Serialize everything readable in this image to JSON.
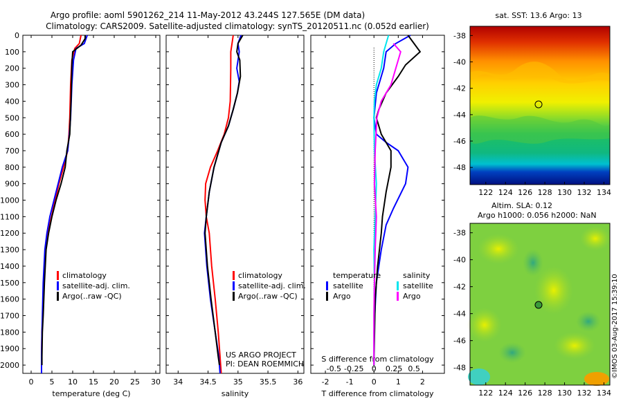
{
  "title": {
    "line1": "Argo profile: aoml 5901262_214 11-May-2012 43.244S 127.565E (DM data)",
    "line2": "Climatology: CARS2009. Satellite-adjusted climatology: synTS_20120511.nc (0.052d earlier)"
  },
  "colors": {
    "climatology": "#ff0000",
    "satellite": "#0000ff",
    "argo": "#000000",
    "sat_salinity": "#00e5ee",
    "argo_salinity": "#ff00ff"
  },
  "depth_ticks": [
    "0",
    "100",
    "200",
    "300",
    "400",
    "500",
    "600",
    "700",
    "800",
    "900",
    "1000",
    "1100",
    "1200",
    "1300",
    "1400",
    "1500",
    "1600",
    "1700",
    "1800",
    "1900",
    "2000"
  ],
  "legend": {
    "climatology": "climatology",
    "satellite": "satellite-adj. clim.",
    "argo": "Argo(..raw -QC)"
  },
  "diff_legend": {
    "temperature": "temperature",
    "salinity": "salinity",
    "satellite": "satellite",
    "argo": "Argo"
  },
  "project": {
    "line1": "US ARGO PROJECT",
    "line2": "PI: DEAN ROEMMICH"
  },
  "sst_map": {
    "title": "sat. SST: 13.6 Argo: 13",
    "xticks": [
      "122",
      "124",
      "126",
      "128",
      "130",
      "132",
      "134"
    ],
    "yticks": [
      "-38",
      "-40",
      "-42",
      "-44",
      "-46",
      "-48"
    ],
    "marker": {
      "lon": 127.565,
      "lat": -43.244
    }
  },
  "sla_map": {
    "title1": "Altim. SLA: 0.12",
    "title2": "Argo h1000: 0.056 h2000: NaN",
    "xticks": [
      "122",
      "124",
      "126",
      "128",
      "130",
      "132",
      "134"
    ],
    "yticks": [
      "-38",
      "-40",
      "-42",
      "-44",
      "-46",
      "-48"
    ],
    "marker": {
      "lon": 127.565,
      "lat": -43.244
    }
  },
  "credit": "©IMOS 03-Aug-2017 15:39:10",
  "chart_data": [
    {
      "type": "line",
      "xlabel": "temperature (deg C)",
      "xticks": [
        "0",
        "5",
        "10",
        "15",
        "20",
        "25",
        "30"
      ],
      "xlim": [
        -2,
        31
      ],
      "ylim": [
        2050,
        0
      ],
      "series": [
        {
          "name": "climatology",
          "color": "#ff0000",
          "x": [
            12,
            11.6,
            10.5,
            9.8,
            9.5,
            9.3,
            9.1,
            8.8,
            7.8,
            6.7,
            5.8,
            4.9,
            4.0,
            3.5,
            3.0,
            2.8,
            2.6,
            2.5,
            2.5
          ],
          "y": [
            0,
            50,
            80,
            150,
            300,
            500,
            600,
            700,
            800,
            900,
            1000,
            1100,
            1200,
            1300,
            1500,
            1700,
            1800,
            1950,
            2050
          ]
        },
        {
          "name": "satellite-adj. clim.",
          "color": "#0000ff",
          "x": [
            13.5,
            12.8,
            10.8,
            10.2,
            9.8,
            9.5,
            9.2,
            8.8,
            7.5,
            6.5,
            5.5,
            4.5,
            3.8,
            3.3,
            2.9,
            2.7,
            2.6,
            2.5,
            2.5
          ],
          "y": [
            0,
            50,
            80,
            150,
            300,
            500,
            600,
            700,
            800,
            900,
            1000,
            1100,
            1200,
            1300,
            1500,
            1700,
            1800,
            1950,
            2050
          ]
        },
        {
          "name": "Argo(..raw -QC)",
          "color": "#000000",
          "x": [
            13,
            13,
            12,
            10,
            9.8,
            9.6,
            9.3,
            8.6,
            8.2,
            7.2,
            6.0,
            5.0,
            4.2,
            3.6,
            3.2,
            2.9,
            2.7,
            2.6,
            2.6
          ],
          "y": [
            0,
            20,
            60,
            100,
            180,
            400,
            600,
            700,
            800,
            900,
            1000,
            1100,
            1200,
            1300,
            1500,
            1700,
            1800,
            1950,
            2000
          ]
        }
      ]
    },
    {
      "type": "line",
      "xlabel": "salinity",
      "xticks": [
        "34",
        "34.5",
        "35",
        "35.5",
        "36"
      ],
      "xlim": [
        33.8,
        36.1
      ],
      "ylim": [
        2050,
        0
      ],
      "series": [
        {
          "name": "climatology",
          "color": "#ff0000",
          "x": [
            34.92,
            34.9,
            34.88,
            34.88,
            34.87,
            34.84,
            34.77,
            34.66,
            34.54,
            34.46,
            34.45,
            34.47,
            34.52,
            34.56,
            34.62,
            34.67,
            34.7,
            34.72
          ],
          "y": [
            0,
            50,
            100,
            200,
            400,
            500,
            600,
            700,
            800,
            900,
            1000,
            1100,
            1200,
            1400,
            1600,
            1800,
            1950,
            2050
          ]
        },
        {
          "name": "satellite-adj. clim.",
          "color": "#0000ff",
          "x": [
            35.05,
            35.0,
            35.02,
            34.98,
            35.02,
            34.99,
            34.92,
            34.84,
            34.72,
            34.6,
            34.52,
            34.47,
            34.44,
            34.48,
            34.54,
            34.62,
            34.68,
            34.7
          ],
          "y": [
            0,
            50,
            100,
            200,
            280,
            350,
            450,
            550,
            650,
            800,
            950,
            1100,
            1200,
            1400,
            1600,
            1800,
            1950,
            2050
          ]
        },
        {
          "name": "Argo(..raw -QC)",
          "color": "#000000",
          "x": [
            35.08,
            35.0,
            34.98,
            35.03,
            35.04,
            34.99,
            34.92,
            34.84,
            34.72,
            34.6,
            34.52,
            34.47,
            34.45,
            34.49,
            34.55,
            34.62,
            34.67,
            34.69
          ],
          "y": [
            0,
            50,
            100,
            150,
            250,
            350,
            450,
            550,
            650,
            800,
            950,
            1100,
            1200,
            1400,
            1600,
            1800,
            1950,
            2000
          ]
        }
      ]
    },
    {
      "type": "line",
      "xlabel": "T difference from climatology",
      "xticks": [
        "-2",
        "-1",
        "0",
        "1",
        "2"
      ],
      "x2label": "S difference from climatology",
      "x2ticks": [
        "-0.5",
        "-0.25",
        "0",
        "0.25",
        "0.5"
      ],
      "xlim": [
        -2.6,
        2.9
      ],
      "ylim": [
        2050,
        0
      ],
      "series": [
        {
          "name": "temperature satellite",
          "color": "#0000ff",
          "x": [
            1.5,
            0.9,
            0.5,
            0.4,
            0.1,
            0,
            0.1,
            0.5,
            1.0,
            1.4,
            1.3,
            0.8,
            0.5,
            0.3,
            0.1,
            0,
            0
          ],
          "y": [
            0,
            50,
            100,
            200,
            350,
            500,
            600,
            650,
            700,
            800,
            900,
            1050,
            1150,
            1300,
            1500,
            1800,
            2000
          ]
        },
        {
          "name": "temperature Argo",
          "color": "#000000",
          "x": [
            1.4,
            1.9,
            1.3,
            1.0,
            0.5,
            0.2,
            0.1,
            0.3,
            0.7,
            0.7,
            0.5,
            0.35,
            0.3,
            0.15,
            0.05,
            0
          ],
          "y": [
            0,
            100,
            180,
            250,
            350,
            450,
            500,
            600,
            700,
            800,
            950,
            1100,
            1200,
            1400,
            1600,
            2000
          ]
        },
        {
          "name": "salinity satellite",
          "color": "#00e5ee",
          "x": [
            0.6,
            0.5,
            0.4,
            0.3,
            0.1,
            0.02,
            0,
            0.02,
            0.1,
            0.05,
            0,
            0.02,
            0,
            0
          ],
          "y": [
            0,
            50,
            100,
            200,
            300,
            400,
            500,
            700,
            900,
            1100,
            1300,
            1500,
            1700,
            2000
          ]
        },
        {
          "name": "salinity Argo",
          "color": "#ff00ff",
          "x": [
            0.8,
            1.1,
            0.9,
            0.7,
            0.3,
            0.12,
            0.05,
            0.02,
            0.1,
            0.05,
            0.02,
            0,
            0
          ],
          "y": [
            50,
            100,
            200,
            300,
            400,
            500,
            700,
            900,
            1100,
            1300,
            1500,
            1700,
            2000
          ]
        }
      ]
    }
  ]
}
